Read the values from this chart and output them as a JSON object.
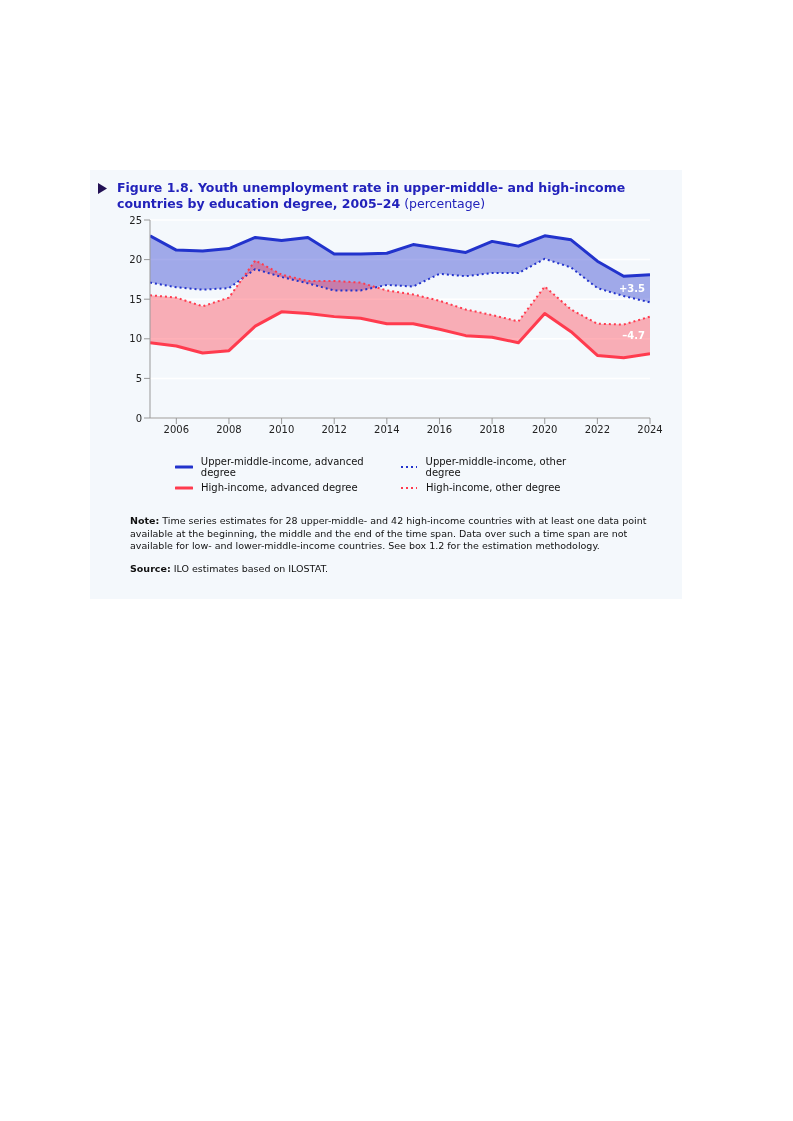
{
  "chart_data": {
    "type": "line",
    "title": "Figure 1.8. Youth unemployment rate in upper-middle- and high-income countries by education degree, 2005–24",
    "subtitle": "(percentage)",
    "x": [
      2005,
      2006,
      2007,
      2008,
      2009,
      2010,
      2011,
      2012,
      2013,
      2014,
      2015,
      2016,
      2017,
      2018,
      2019,
      2020,
      2021,
      2022,
      2023,
      2024
    ],
    "series": [
      {
        "name": "Upper-middle-income, advanced degree",
        "color": "#2233cc",
        "line_style": "solid",
        "values": [
          23.0,
          21.2,
          21.1,
          21.4,
          22.8,
          22.4,
          22.8,
          20.7,
          20.7,
          20.8,
          21.9,
          21.4,
          20.9,
          22.3,
          21.7,
          23.0,
          22.5,
          19.8,
          17.9,
          18.1
        ],
        "lower": [
          17.1,
          16.5,
          16.2,
          16.4,
          18.8,
          17.8,
          17.0,
          16.1,
          16.1,
          16.8,
          16.6,
          18.2,
          17.9,
          18.3,
          18.3,
          20.1,
          19.0,
          16.4,
          15.4,
          14.6
        ],
        "upper": [
          23.0,
          21.2,
          21.1,
          21.4,
          22.8,
          22.4,
          22.8,
          20.7,
          20.7,
          20.8,
          21.9,
          21.4,
          20.9,
          22.3,
          21.7,
          23.0,
          22.5,
          19.8,
          17.9,
          18.1
        ]
      },
      {
        "name": "High-income, advanced degree",
        "color": "#ff3b4e",
        "line_style": "solid",
        "values": [
          9.5,
          9.1,
          8.2,
          8.5,
          11.6,
          13.4,
          13.2,
          12.8,
          12.6,
          11.9,
          11.9,
          11.2,
          10.4,
          10.2,
          9.5,
          13.2,
          10.9,
          7.9,
          7.6,
          8.1
        ],
        "lower": [
          9.5,
          9.1,
          8.2,
          8.5,
          11.6,
          13.4,
          13.2,
          12.8,
          12.6,
          11.9,
          11.9,
          11.2,
          10.4,
          10.2,
          9.5,
          13.2,
          10.9,
          7.9,
          7.6,
          8.1
        ],
        "upper": [
          15.5,
          15.2,
          14.1,
          15.2,
          19.9,
          18.1,
          17.3,
          17.3,
          17.1,
          16.1,
          15.6,
          14.8,
          13.7,
          13.0,
          12.2,
          16.6,
          13.7,
          11.9,
          11.8,
          12.8
        ]
      },
      {
        "name": "Upper-middle-income, other degree",
        "color": "#2233cc",
        "line_style": "dotted",
        "values": [
          17.1,
          16.5,
          16.2,
          16.4,
          18.8,
          17.8,
          17.0,
          16.1,
          16.1,
          16.8,
          16.6,
          18.2,
          17.9,
          18.3,
          18.3,
          20.1,
          19.0,
          16.4,
          15.4,
          14.6
        ]
      },
      {
        "name": "High-income, other degree",
        "color": "#ff3b4e",
        "line_style": "dotted",
        "values": [
          15.5,
          15.2,
          14.1,
          15.2,
          19.9,
          18.1,
          17.3,
          17.3,
          17.1,
          16.1,
          15.6,
          14.8,
          13.7,
          13.0,
          12.2,
          16.6,
          13.7,
          11.9,
          11.8,
          12.8
        ]
      }
    ],
    "xlim": [
      2005,
      2024
    ],
    "xticks": [
      2006,
      2008,
      2010,
      2012,
      2014,
      2016,
      2018,
      2020,
      2022,
      2024
    ],
    "ylim": [
      0,
      25
    ],
    "yticks": [
      0,
      5,
      10,
      15,
      20,
      25
    ],
    "grid": "y",
    "legend": "bottom",
    "marker": "none",
    "annotations": [
      "+3.5",
      "–4.7",
      "Note: Time series estimates for 28 upper-middle- and 42 high-income countries with at least one data point available at the beginning, the middle and the end of the time span. Data over such a time span are not available for low- and lower-middle-income countries. See box 1.2 for the estimation methodology.",
      "Source: ILO estimates based on ILOSTAT."
    ]
  }
}
